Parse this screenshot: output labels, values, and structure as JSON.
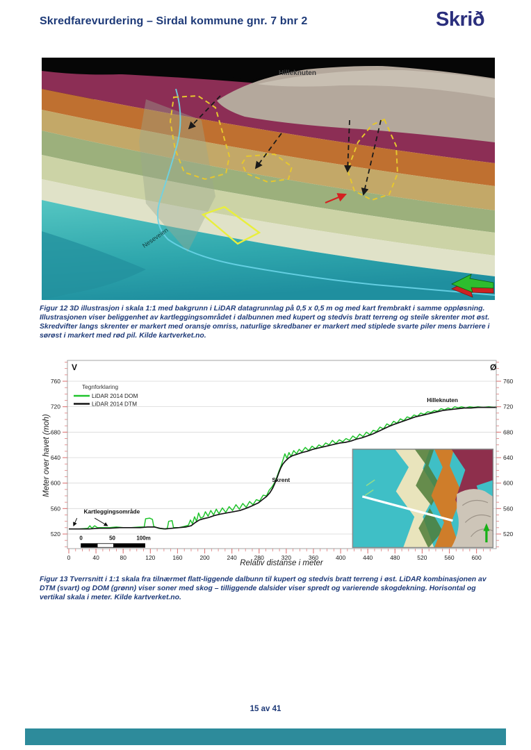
{
  "header": {
    "title": "Skredfarevurdering – Sirdal kommune gnr. 7 bnr 2",
    "logo": "Skrið"
  },
  "figure12": {
    "label_peak": "Hilleknuten",
    "label_road": "Neseveien",
    "caption": "Figur 12 3D illustrasjon i skala 1:1 med bakgrunn i LiDAR datagrunnlag på 0,5 x 0,5 m og med kart frembrakt i samme oppløsning. Illustrasjonen viser beliggenhet av kartleggingsområdet i dalbunnen med kupert og stedvis bratt terreng og steile skrenter mot øst. Skredvifter langs skrenter er markert med oransje omriss, naturlige skredbaner er markert med stiplede svarte piler mens barriere i sørøst i markert med rød pil. Kilde kartverket.no."
  },
  "figure13": {
    "caption": "Figur 13 Tverrsnitt i 1:1 skala fra tilnærmet flatt-liggende dalbunn til kupert og stedvis bratt terreng i øst. LiDAR kombinasjonen av DTM (svart) og DOM (grønn) viser soner med skog – tilliggende dalsider viser spredt og varierende skogdekning. Horisontal og vertikal skala i meter. Kilde kartverket.no."
  },
  "chart_data": {
    "type": "line",
    "title": "",
    "xlabel": "Relativ distanse i meter",
    "ylabel": "Meter over havet (moh)",
    "corner_left": "V",
    "corner_right": "Ø",
    "xlim": [
      -2,
      629
    ],
    "ylim": [
      497,
      793
    ],
    "xticks": [
      0,
      40,
      80,
      120,
      160,
      200,
      240,
      280,
      320,
      360,
      400,
      440,
      480,
      520,
      560,
      600
    ],
    "yticks": [
      520,
      560,
      600,
      640,
      680,
      720,
      760
    ],
    "minor_step_x": 10,
    "minor_step_y": 10,
    "grid": true,
    "axis_style": {
      "tick_color": "#dd7a7a",
      "grid_color": "#d9d9d9",
      "border_color": "#9a9a9a",
      "label_color": "#1a1a1a"
    },
    "legend": {
      "title": "Tegnforklaring",
      "position": "top-left",
      "entries": [
        {
          "label": "LiDAR 2014 DOM",
          "color": "#1fc32b"
        },
        {
          "label": "LiDAR 2014 DTM",
          "color": "#141414"
        }
      ]
    },
    "annotations": [
      {
        "text": "Kartleggingsområde",
        "x": 22,
        "y": 552,
        "arrows": [
          {
            "from": [
              12,
              545
            ],
            "to": [
              7,
              533
            ]
          },
          {
            "from": [
              38,
              545
            ],
            "to": [
              57,
              533
            ]
          }
        ]
      },
      {
        "text": "Skrent",
        "x": 299,
        "y": 602
      },
      {
        "text": "Hilleknuten",
        "x": 527,
        "y": 727
      }
    ],
    "scalebar": {
      "x_range": [
        18,
        112
      ],
      "el_range": [
        499,
        505
      ],
      "label_el": 511,
      "labels": [
        {
          "text": "0",
          "x": 18
        },
        {
          "text": "50",
          "x": 64
        },
        {
          "text": "100m",
          "x": 110
        }
      ],
      "segments": [
        [
          18,
          42,
          "#000000"
        ],
        [
          42,
          66,
          "#ffffff"
        ],
        [
          66,
          112,
          "#000000"
        ]
      ]
    },
    "inset": {
      "x_range": [
        417,
        625
      ],
      "el_range": [
        498,
        654
      ],
      "profile_line": [
        [
          432,
          579
        ],
        [
          565,
          541
        ]
      ]
    },
    "series": [
      {
        "name": "LiDAR 2014 DOM",
        "color": "#1fc32b",
        "points": [
          [
            0,
            528
          ],
          [
            15,
            528
          ],
          [
            28,
            529
          ],
          [
            31,
            533
          ],
          [
            34,
            529
          ],
          [
            38,
            533
          ],
          [
            42,
            530
          ],
          [
            50,
            530
          ],
          [
            60,
            530
          ],
          [
            70,
            531
          ],
          [
            80,
            530
          ],
          [
            92,
            530
          ],
          [
            104,
            531
          ],
          [
            111,
            531
          ],
          [
            113,
            544
          ],
          [
            119,
            545
          ],
          [
            123,
            543
          ],
          [
            125,
            532
          ],
          [
            132,
            529
          ],
          [
            140,
            528
          ],
          [
            145,
            529
          ],
          [
            147,
            540
          ],
          [
            152,
            541
          ],
          [
            154,
            530
          ],
          [
            162,
            530
          ],
          [
            170,
            532
          ],
          [
            176,
            534
          ],
          [
            179,
            542
          ],
          [
            182,
            536
          ],
          [
            185,
            547
          ],
          [
            188,
            540
          ],
          [
            191,
            553
          ],
          [
            194,
            545
          ],
          [
            198,
            547
          ],
          [
            201,
            555
          ],
          [
            205,
            548
          ],
          [
            209,
            557
          ],
          [
            213,
            550
          ],
          [
            217,
            559
          ],
          [
            221,
            552
          ],
          [
            226,
            561
          ],
          [
            231,
            554
          ],
          [
            236,
            563
          ],
          [
            241,
            557
          ],
          [
            246,
            566
          ],
          [
            251,
            559
          ],
          [
            256,
            568
          ],
          [
            261,
            562
          ],
          [
            266,
            571
          ],
          [
            271,
            566
          ],
          [
            276,
            574
          ],
          [
            281,
            572
          ],
          [
            286,
            581
          ],
          [
            291,
            580
          ],
          [
            295,
            589
          ],
          [
            299,
            594
          ],
          [
            303,
            601
          ],
          [
            306,
            609
          ],
          [
            309,
            618
          ],
          [
            312,
            626
          ],
          [
            315,
            636
          ],
          [
            318,
            646
          ],
          [
            321,
            639
          ],
          [
            324,
            648
          ],
          [
            327,
            642
          ],
          [
            331,
            651
          ],
          [
            335,
            646
          ],
          [
            339,
            653
          ],
          [
            343,
            649
          ],
          [
            348,
            656
          ],
          [
            353,
            651
          ],
          [
            358,
            658
          ],
          [
            363,
            654
          ],
          [
            368,
            660
          ],
          [
            373,
            657
          ],
          [
            378,
            663
          ],
          [
            383,
            660
          ],
          [
            388,
            667
          ],
          [
            393,
            662
          ],
          [
            398,
            668
          ],
          [
            403,
            665
          ],
          [
            408,
            670
          ],
          [
            413,
            667
          ],
          [
            418,
            674
          ],
          [
            423,
            670
          ],
          [
            428,
            677
          ],
          [
            433,
            673
          ],
          [
            438,
            680
          ],
          [
            443,
            676
          ],
          [
            448,
            683
          ],
          [
            453,
            681
          ],
          [
            458,
            688
          ],
          [
            463,
            685
          ],
          [
            468,
            693
          ],
          [
            473,
            690
          ],
          [
            478,
            697
          ],
          [
            483,
            694
          ],
          [
            488,
            701
          ],
          [
            493,
            698
          ],
          [
            498,
            704
          ],
          [
            503,
            702
          ],
          [
            508,
            707
          ],
          [
            513,
            705
          ],
          [
            518,
            710
          ],
          [
            523,
            708
          ],
          [
            528,
            712
          ],
          [
            533,
            711
          ],
          [
            538,
            714
          ],
          [
            543,
            713
          ],
          [
            548,
            717
          ],
          [
            553,
            715
          ],
          [
            558,
            718
          ],
          [
            563,
            716
          ],
          [
            568,
            720
          ],
          [
            573,
            718
          ],
          [
            578,
            720
          ],
          [
            584,
            718
          ],
          [
            590,
            720
          ],
          [
            596,
            719
          ],
          [
            602,
            720
          ],
          [
            610,
            719
          ],
          [
            618,
            720
          ],
          [
            626,
            719
          ],
          [
            630,
            720
          ]
        ]
      },
      {
        "name": "LiDAR 2014 DTM",
        "color": "#141414",
        "points": [
          [
            0,
            528
          ],
          [
            15,
            528
          ],
          [
            30,
            528
          ],
          [
            45,
            529
          ],
          [
            60,
            529
          ],
          [
            75,
            530
          ],
          [
            90,
            530
          ],
          [
            105,
            530
          ],
          [
            116,
            531
          ],
          [
            126,
            531
          ],
          [
            134,
            529
          ],
          [
            142,
            528
          ],
          [
            152,
            529
          ],
          [
            162,
            530
          ],
          [
            172,
            531
          ],
          [
            180,
            533
          ],
          [
            186,
            538
          ],
          [
            192,
            542
          ],
          [
            198,
            544
          ],
          [
            206,
            546
          ],
          [
            214,
            549
          ],
          [
            222,
            551
          ],
          [
            232,
            553
          ],
          [
            242,
            555
          ],
          [
            252,
            557
          ],
          [
            260,
            560
          ],
          [
            267,
            563
          ],
          [
            273,
            566
          ],
          [
            279,
            569
          ],
          [
            285,
            574
          ],
          [
            291,
            579
          ],
          [
            296,
            585
          ],
          [
            300,
            592
          ],
          [
            303,
            599
          ],
          [
            306,
            607
          ],
          [
            309,
            616
          ],
          [
            312,
            624
          ],
          [
            315,
            630
          ],
          [
            319,
            635
          ],
          [
            324,
            640
          ],
          [
            329,
            643
          ],
          [
            335,
            645
          ],
          [
            343,
            648
          ],
          [
            351,
            650
          ],
          [
            359,
            653
          ],
          [
            367,
            655
          ],
          [
            375,
            657
          ],
          [
            383,
            659
          ],
          [
            391,
            661
          ],
          [
            399,
            663
          ],
          [
            407,
            664
          ],
          [
            415,
            666
          ],
          [
            423,
            669
          ],
          [
            431,
            671
          ],
          [
            439,
            674
          ],
          [
            447,
            677
          ],
          [
            453,
            680
          ],
          [
            459,
            683
          ],
          [
            465,
            686
          ],
          [
            471,
            689
          ],
          [
            478,
            692
          ],
          [
            486,
            695
          ],
          [
            494,
            698
          ],
          [
            502,
            701
          ],
          [
            510,
            704
          ],
          [
            518,
            706
          ],
          [
            526,
            708
          ],
          [
            534,
            710
          ],
          [
            542,
            712
          ],
          [
            550,
            714
          ],
          [
            558,
            715
          ],
          [
            566,
            716
          ],
          [
            574,
            717
          ],
          [
            582,
            718
          ],
          [
            592,
            718
          ],
          [
            602,
            719
          ],
          [
            614,
            719
          ],
          [
            630,
            719
          ]
        ]
      }
    ]
  },
  "footer": {
    "page_number": "15 av 41",
    "bar_color": "#2d8b9b"
  }
}
